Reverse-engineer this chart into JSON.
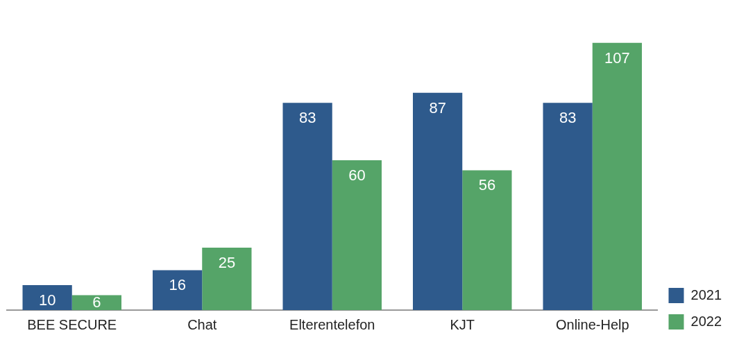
{
  "chart_data": {
    "type": "bar",
    "categories": [
      "BEE SECURE",
      "Chat",
      "Elterentelefon",
      "KJT",
      "Online-Help"
    ],
    "series": [
      {
        "name": "2021",
        "color": "#2e5a8c",
        "values": [
          10,
          16,
          83,
          87,
          83
        ]
      },
      {
        "name": "2022",
        "color": "#55a468",
        "values": [
          6,
          25,
          60,
          56,
          107
        ]
      }
    ],
    "data_labels": true,
    "legend": "bottom right",
    "grid": false
  }
}
